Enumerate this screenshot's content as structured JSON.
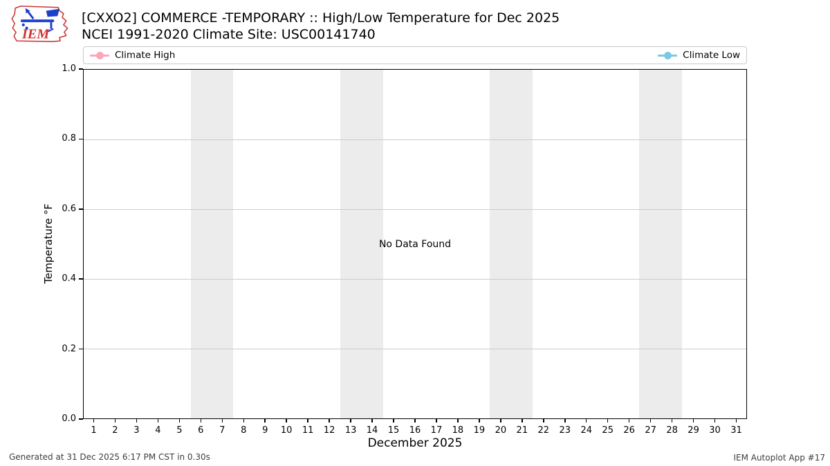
{
  "header": {
    "title_line1": "[CXXO2] COMMERCE -TEMPORARY :: High/Low Temperature for Dec 2025",
    "title_line2": "NCEI 1991-2020 Climate Site: USC00141740",
    "logo_text": "IEM"
  },
  "legend": {
    "high": {
      "label": "Climate High",
      "color": "#f9a8b8"
    },
    "low": {
      "label": "Climate Low",
      "color": "#7cc7e3"
    }
  },
  "chart_data": {
    "type": "line",
    "title": "[CXXO2] COMMERCE -TEMPORARY :: High/Low Temperature for Dec 2025",
    "subtitle": "NCEI 1991-2020 Climate Site: USC00141740",
    "xlabel": "December 2025",
    "ylabel": "Temperature °F",
    "no_data_message": "No Data Found",
    "xlim": [
      0.5,
      31.5
    ],
    "ylim": [
      0.0,
      1.0
    ],
    "x_ticks": [
      1,
      2,
      3,
      4,
      5,
      6,
      7,
      8,
      9,
      10,
      11,
      12,
      13,
      14,
      15,
      16,
      17,
      18,
      19,
      20,
      21,
      22,
      23,
      24,
      25,
      26,
      27,
      28,
      29,
      30,
      31
    ],
    "y_ticks": [
      0.0,
      0.2,
      0.4,
      0.6,
      0.8,
      1.0
    ],
    "y_tick_labels": [
      "0.0",
      "0.2",
      "0.4",
      "0.6",
      "0.8",
      "1.0"
    ],
    "grid": true,
    "grid_color": "#cccccc",
    "band_color": "#ececec",
    "weekend_bands": [
      [
        5.5,
        7.5
      ],
      [
        12.5,
        14.5
      ],
      [
        19.5,
        21.5
      ],
      [
        26.5,
        28.5
      ]
    ],
    "legend_position": "top, full-width, high left / low right",
    "series": [
      {
        "name": "Climate High",
        "color": "#f9a8b8",
        "x": [],
        "values": []
      },
      {
        "name": "Climate Low",
        "color": "#7cc7e3",
        "x": [],
        "values": []
      }
    ]
  },
  "footer": {
    "left": "Generated at 31 Dec 2025 6:17 PM CST in 0.30s",
    "right": "IEM Autoplot App #17"
  }
}
